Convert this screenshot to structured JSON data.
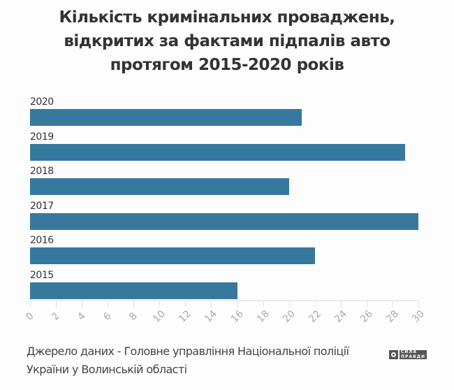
{
  "title_lines": [
    "Кількість кримінальних проваджень,",
    "відкритих за фактами підпалів авто",
    "протягом 2015-2020 років"
  ],
  "source_lines": [
    "Джерело даних - Головне управління Національної поліції",
    "України у Волинській області"
  ],
  "logo": {
    "line1": "СИЛА",
    "line2": "ПРАВДИ"
  },
  "colors": {
    "bar": "#37789f",
    "title": "#333333",
    "tick_label": "#aaaaaa"
  },
  "chart_data": {
    "type": "bar",
    "orientation": "horizontal",
    "title": "Кількість кримінальних проваджень, відкритих за фактами підпалів авто протягом 2015-2020 років",
    "categories": [
      "2020",
      "2019",
      "2018",
      "2017",
      "2016",
      "2015"
    ],
    "values": [
      21,
      29,
      20,
      30,
      22,
      16
    ],
    "xlabel": "",
    "ylabel": "",
    "xlim": [
      0,
      30
    ],
    "xticks": [
      "0",
      "2",
      "4",
      "6",
      "8",
      "10",
      "12",
      "14",
      "16",
      "18",
      "20",
      "22",
      "24",
      "26",
      "28",
      "30"
    ],
    "grid": false,
    "legend": null,
    "source": "Джерело даних - Головне управління Національної поліції України у Волинській області"
  }
}
